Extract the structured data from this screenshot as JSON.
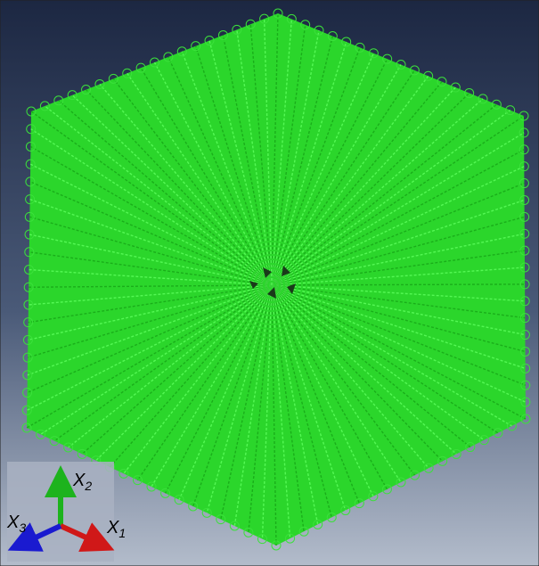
{
  "triad": {
    "axes": [
      {
        "letter": "X",
        "index": "2"
      },
      {
        "letter": "X",
        "index": "3"
      },
      {
        "letter": "X",
        "index": "1"
      }
    ]
  }
}
